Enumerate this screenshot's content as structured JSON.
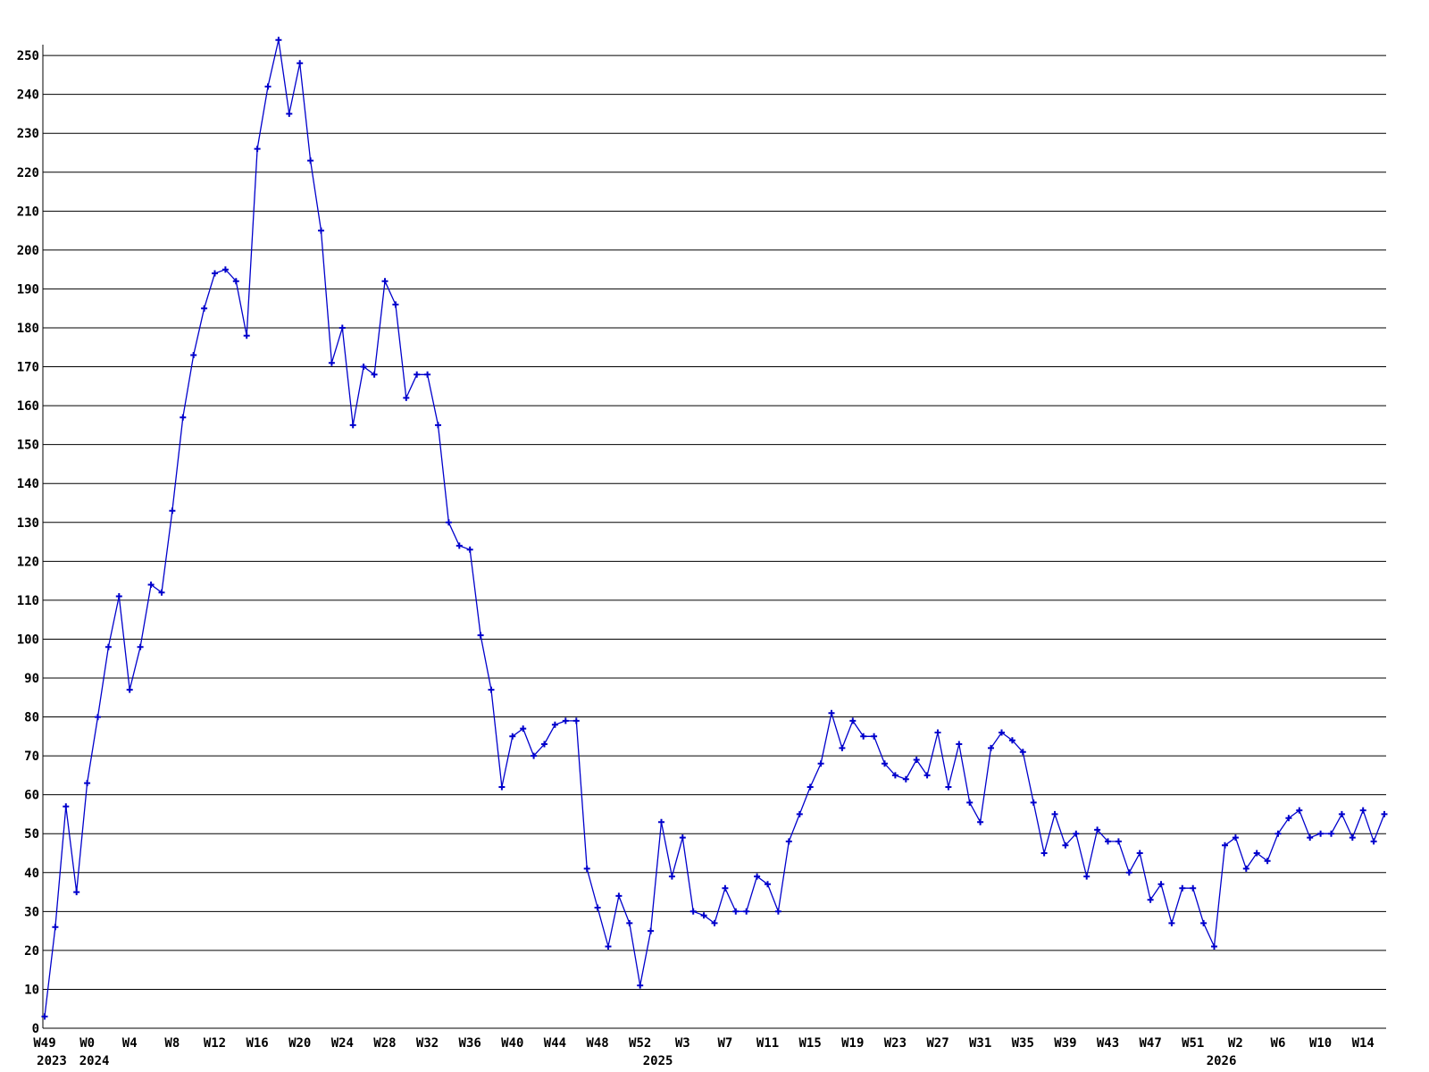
{
  "page": {
    "background_color": "#ffffff"
  },
  "chart_data": {
    "type": "line",
    "title": "",
    "xlabel": "",
    "ylabel": "",
    "grid": "horizontal-only",
    "legend": "none",
    "line_color": "#0000cc",
    "marker_style": "plus",
    "axis_color": "#000000",
    "label_color": "#000000",
    "ylim": [
      0,
      255
    ],
    "y_tick_step": 10,
    "y_tick_labels": [
      0,
      10,
      20,
      30,
      40,
      50,
      60,
      70,
      80,
      90,
      100,
      110,
      120,
      130,
      140,
      150,
      160,
      170,
      180,
      190,
      200,
      210,
      220,
      230,
      240,
      250
    ],
    "x_unit": "ISO week, one data point per week",
    "x_tick_labels": [
      {
        "index": 0,
        "label": "W49"
      },
      {
        "index": 4,
        "label": "W0"
      },
      {
        "index": 8,
        "label": "W4"
      },
      {
        "index": 12,
        "label": "W8"
      },
      {
        "index": 16,
        "label": "W12"
      },
      {
        "index": 20,
        "label": "W16"
      },
      {
        "index": 24,
        "label": "W20"
      },
      {
        "index": 28,
        "label": "W24"
      },
      {
        "index": 32,
        "label": "W28"
      },
      {
        "index": 36,
        "label": "W32"
      },
      {
        "index": 40,
        "label": "W36"
      },
      {
        "index": 44,
        "label": "W40"
      },
      {
        "index": 48,
        "label": "W44"
      },
      {
        "index": 52,
        "label": "W48"
      },
      {
        "index": 56,
        "label": "W52"
      },
      {
        "index": 60,
        "label": "W3"
      },
      {
        "index": 64,
        "label": "W7"
      },
      {
        "index": 68,
        "label": "W11"
      },
      {
        "index": 72,
        "label": "W15"
      },
      {
        "index": 76,
        "label": "W19"
      },
      {
        "index": 80,
        "label": "W23"
      },
      {
        "index": 84,
        "label": "W27"
      },
      {
        "index": 88,
        "label": "W31"
      },
      {
        "index": 92,
        "label": "W35"
      },
      {
        "index": 96,
        "label": "W39"
      },
      {
        "index": 100,
        "label": "W43"
      },
      {
        "index": 104,
        "label": "W47"
      },
      {
        "index": 108,
        "label": "W51"
      },
      {
        "index": 112,
        "label": "W2"
      },
      {
        "index": 116,
        "label": "W6"
      },
      {
        "index": 120,
        "label": "W10"
      },
      {
        "index": 124,
        "label": "W14"
      }
    ],
    "year_labels": [
      {
        "index": 0,
        "label": "2023"
      },
      {
        "index": 4,
        "label": "2024"
      },
      {
        "index": 57,
        "label": "2025"
      },
      {
        "index": 110,
        "label": "2026"
      }
    ],
    "series": [
      {
        "name": "weekly-values",
        "segments": [
          {
            "year": 2023,
            "start_week": 49,
            "values": [
              3,
              26,
              57,
              35
            ]
          },
          {
            "year": 2024,
            "start_week": 0,
            "values": [
              63,
              80,
              98,
              111,
              87,
              98,
              114,
              112,
              133,
              157,
              173,
              185,
              194,
              195,
              192,
              178,
              226,
              242,
              254,
              235,
              248,
              223,
              205,
              171,
              180,
              155,
              170,
              168,
              192,
              186,
              162,
              168,
              168,
              155,
              130,
              124,
              123,
              101,
              87,
              62,
              75,
              77,
              70,
              73,
              78,
              79,
              79,
              41,
              31,
              21,
              34,
              27,
              11
            ]
          },
          {
            "year": 2025,
            "start_week": 0,
            "values": [
              25,
              53,
              39,
              49,
              30,
              29,
              27,
              36,
              30,
              30,
              39,
              37,
              30,
              48,
              55,
              62,
              68,
              81,
              72,
              79,
              75,
              75,
              68,
              65,
              64,
              69,
              65,
              76,
              62,
              73,
              58,
              53,
              72,
              76,
              74,
              71,
              58,
              45,
              55,
              47,
              50,
              39,
              51,
              48,
              48,
              40,
              45,
              33,
              37,
              27,
              36,
              36,
              27
            ]
          },
          {
            "year": 2026,
            "start_week": 0,
            "values": [
              21,
              47,
              49,
              41,
              45,
              43,
              50,
              54,
              56,
              49,
              50,
              50,
              55,
              49,
              56,
              48,
              55
            ]
          }
        ]
      }
    ]
  }
}
